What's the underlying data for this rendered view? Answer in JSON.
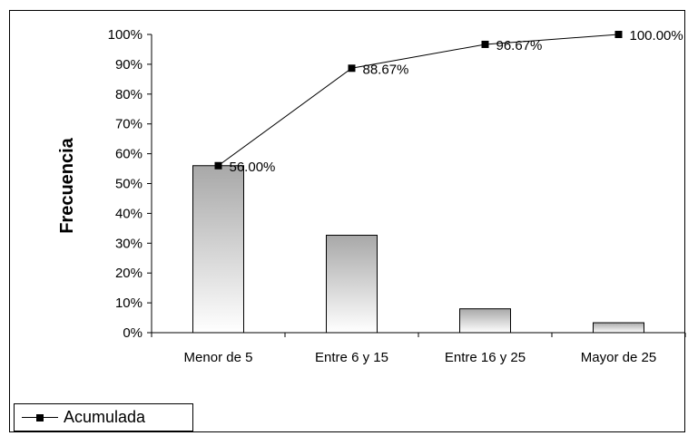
{
  "chart_data": {
    "type": "bar",
    "categories": [
      "Menor de 5",
      "Entre 6 y 15",
      "Entre 16 y 25",
      "Mayor de 25"
    ],
    "series": [
      {
        "values": [
          56.0,
          32.67,
          8.0,
          3.33
        ],
        "kind": "bar"
      },
      {
        "name": "Acumulada",
        "values": [
          56.0,
          88.67,
          96.67,
          100.0
        ],
        "kind": "line"
      }
    ],
    "data_labels": [
      "56.00%",
      "88.67%",
      "96.67%",
      "100.00%"
    ],
    "ylabel": "Frecuencia",
    "ylim": [
      0,
      100
    ],
    "yticks": [
      "0%",
      "10%",
      "20%",
      "30%",
      "40%",
      "50%",
      "60%",
      "70%",
      "80%",
      "90%",
      "100%"
    ],
    "legend": {
      "placement": "bottom-left",
      "entries": [
        "Acumulada"
      ]
    },
    "grid": false
  },
  "colors": {
    "bar_top": "#a8a8a8",
    "bar_bottom": "#ffffff",
    "line": "#000000"
  }
}
